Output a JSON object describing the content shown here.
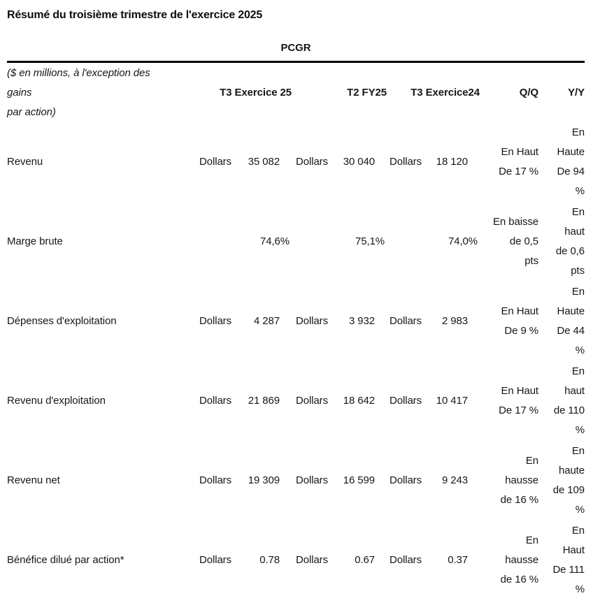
{
  "title": "Résumé du troisième trimestre de l'exercice 2025",
  "colors": {
    "background": "#ffffff",
    "text": "#171717",
    "rule": "#000000"
  },
  "table": {
    "section_header": "PCGR",
    "columns": {
      "units": "($ en millions, à l'exception des\ngains\npar action)",
      "c1": "T3 Exercice 25",
      "c2": "T2 FY25",
      "c3": "T3 Exercice24",
      "qq": "Q/Q",
      "yy": "Y/Y"
    },
    "rows": [
      {
        "label": "Revenu",
        "c1": {
          "prefix": "Dollars",
          "value": "35 082"
        },
        "c2": {
          "prefix": "Dollars",
          "value": "30 040"
        },
        "c3": {
          "prefix": "Dollars",
          "value": "18 120"
        },
        "qq": "En Haut\nDe 17 %",
        "yy": "En\nHaute\nDe 94\n%"
      },
      {
        "label": "Marge brute",
        "c1": {
          "prefix": "",
          "value": "74,6%"
        },
        "c2": {
          "prefix": "",
          "value": "75,1%"
        },
        "c3": {
          "prefix": "",
          "value": "74,0%"
        },
        "qq": "En baisse\nde 0,5\npts",
        "yy": "En\nhaut\nde 0,6\npts"
      },
      {
        "label": "Dépenses d'exploitation",
        "c1": {
          "prefix": "Dollars",
          "value": "4 287"
        },
        "c2": {
          "prefix": "Dollars",
          "value": "3 932"
        },
        "c3": {
          "prefix": "Dollars",
          "value": "2 983"
        },
        "qq": "En Haut\nDe 9 %",
        "yy": "En\nHaute\nDe 44\n%"
      },
      {
        "label": "Revenu d'exploitation",
        "c1": {
          "prefix": "Dollars",
          "value": "21 869"
        },
        "c2": {
          "prefix": "Dollars",
          "value": "18 642"
        },
        "c3": {
          "prefix": "Dollars",
          "value": "10 417"
        },
        "qq": "En Haut\nDe 17 %",
        "yy": "En\nhaut\nde 110\n%"
      },
      {
        "label": "Revenu net",
        "c1": {
          "prefix": "Dollars",
          "value": "19 309"
        },
        "c2": {
          "prefix": "Dollars",
          "value": "16 599"
        },
        "c3": {
          "prefix": "Dollars",
          "value": "9 243"
        },
        "qq": "En\nhausse\nde 16 %",
        "yy": "En\nhaute\nde 109\n%"
      },
      {
        "label": "Bénéfice dilué par action*",
        "c1": {
          "prefix": "Dollars",
          "value": "0.78"
        },
        "c2": {
          "prefix": "Dollars",
          "value": "0.67"
        },
        "c3": {
          "prefix": "Dollars",
          "value": "0.37"
        },
        "qq": "En\nhausse\nde 16 %",
        "yy": "En\nHaut\nDe 111\n%"
      }
    ]
  }
}
